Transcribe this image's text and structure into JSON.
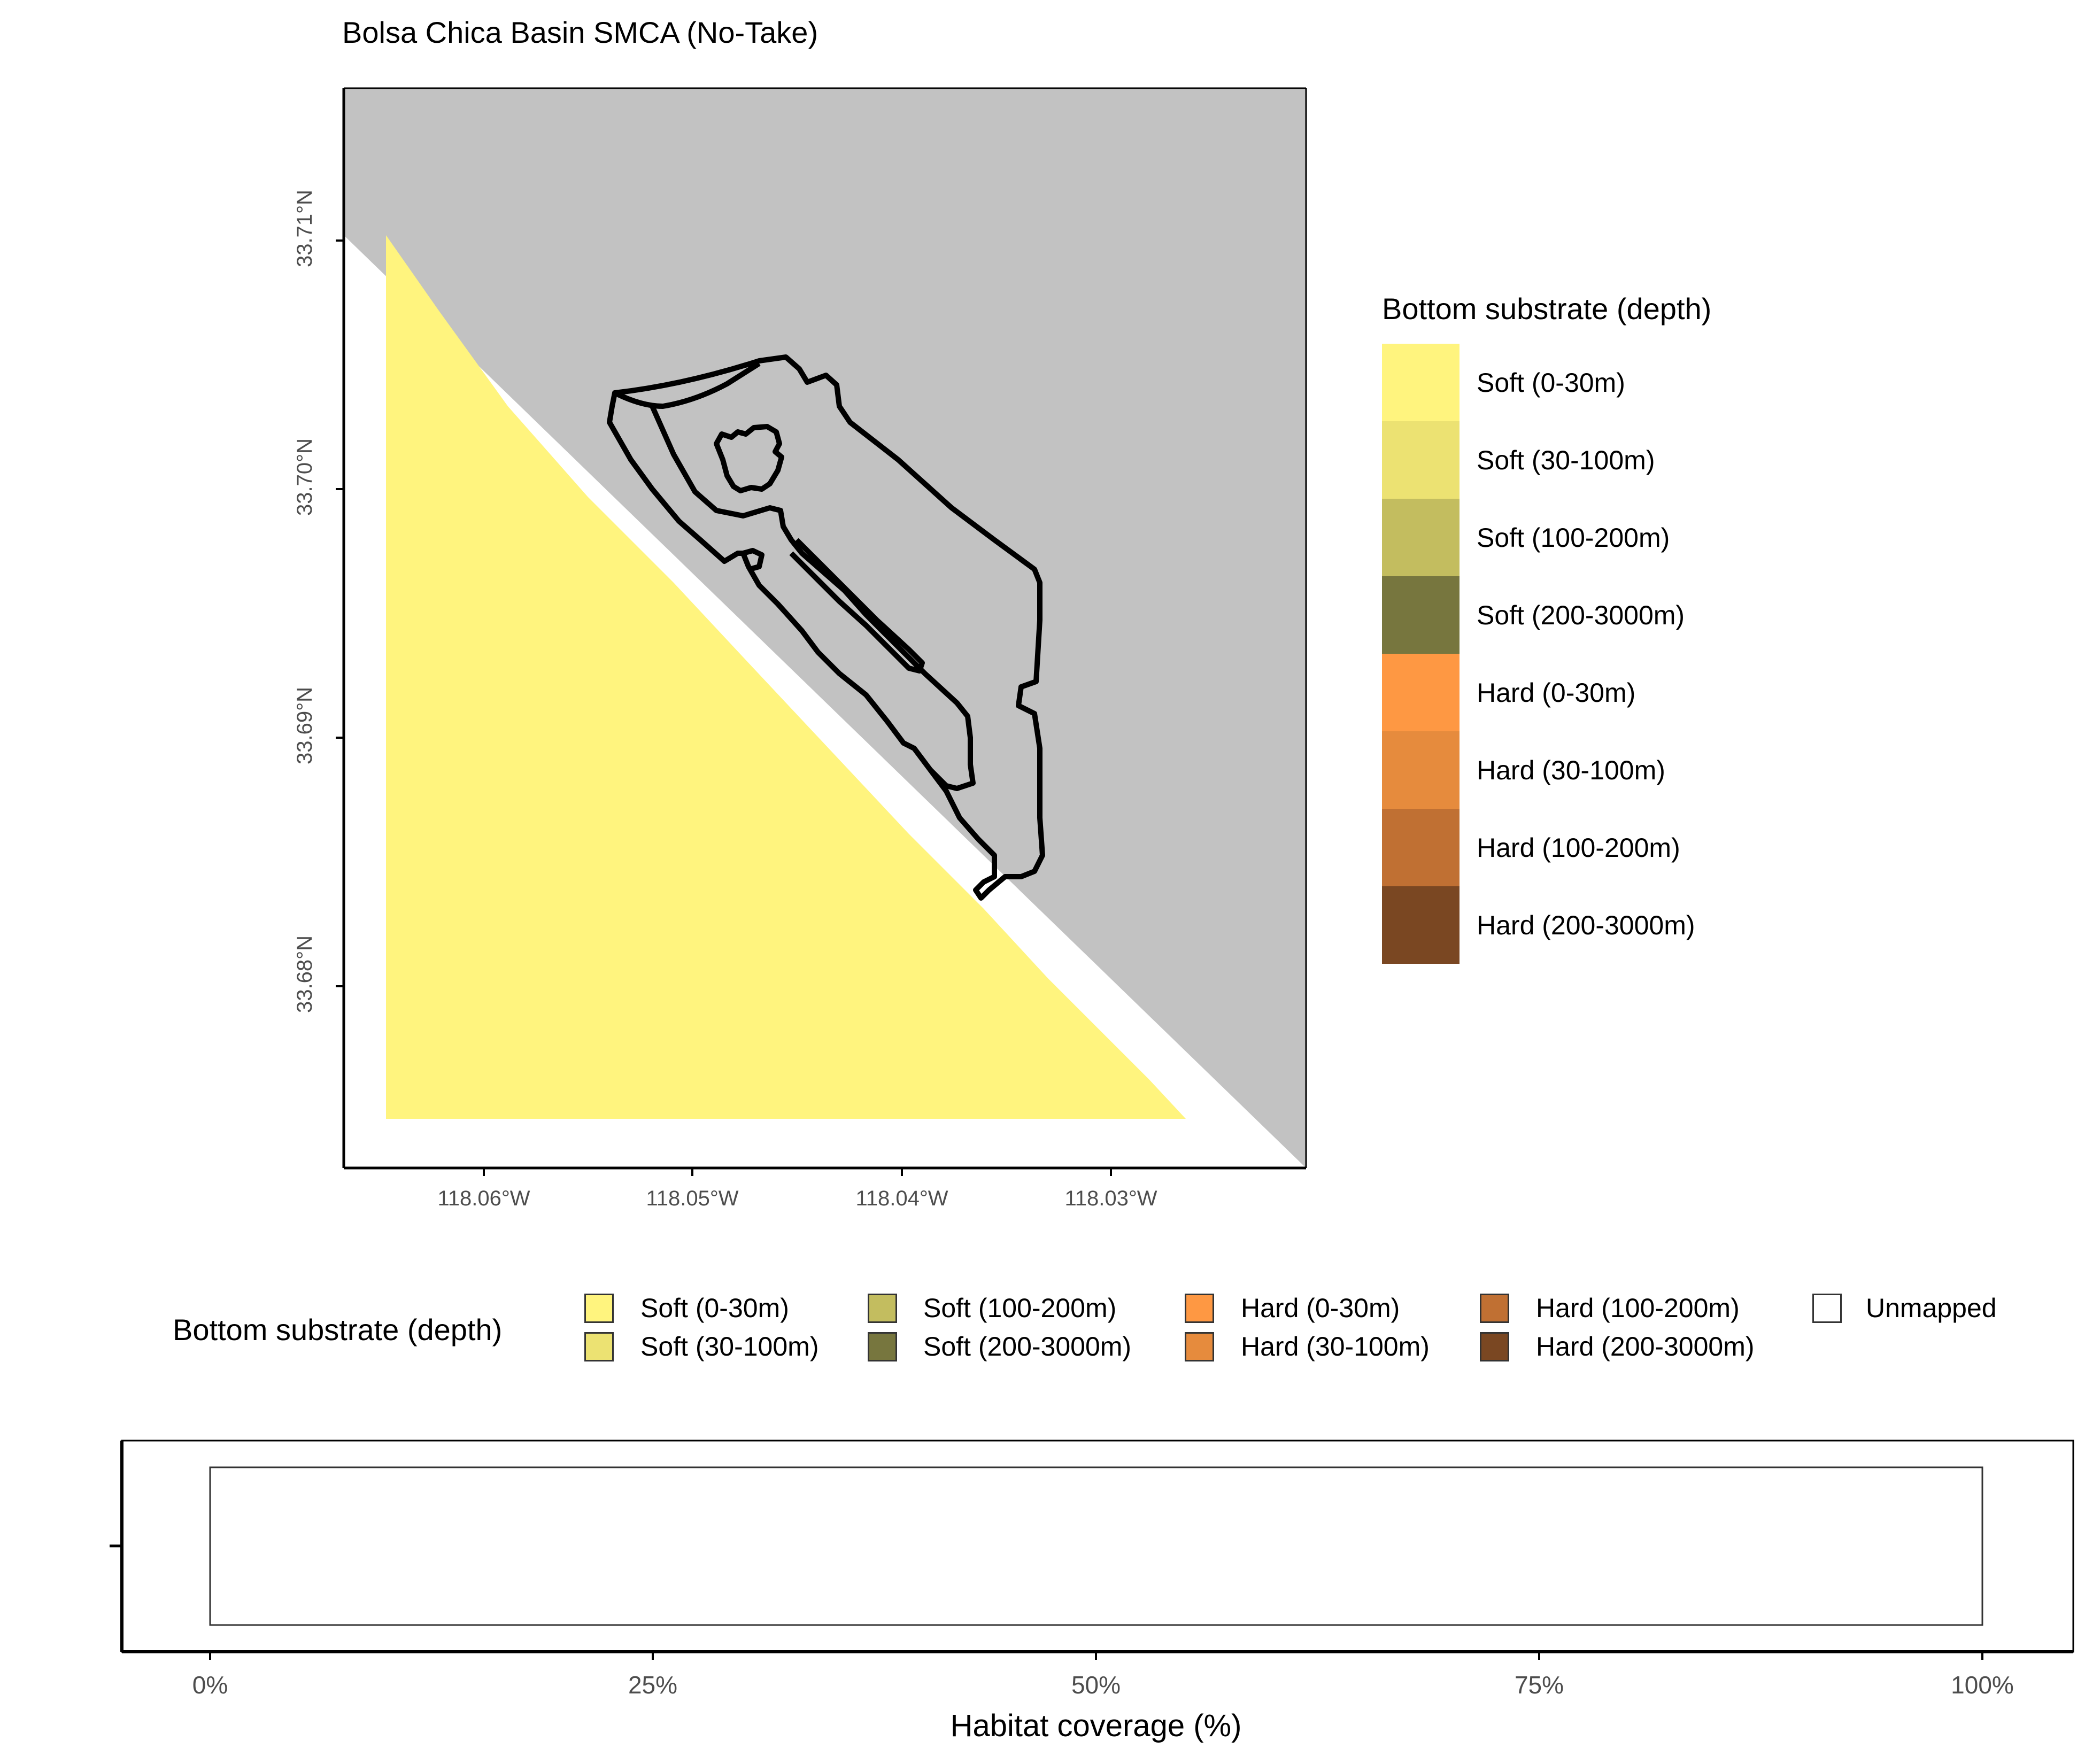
{
  "map": {
    "title": "Bolsa Chica Basin SMCA (No-Take)",
    "y_ticks": [
      "33.71°N",
      "33.70°N",
      "33.69°N",
      "33.68°N"
    ],
    "x_ticks": [
      "118.06°W",
      "118.05°W",
      "118.04°W",
      "118.03°W"
    ],
    "land_color": "#c2c2c2",
    "ocean_color": "#ffffff",
    "substrate_color": "#fff47e",
    "boundary_color": "#000000"
  },
  "legend_right": {
    "title": "Bottom substrate (depth)",
    "items": [
      {
        "label": "Soft (0-30m)",
        "color": "#fff47e"
      },
      {
        "label": "Soft (30-100m)",
        "color": "#ece272"
      },
      {
        "label": "Soft (100-200m)",
        "color": "#c3bd5f"
      },
      {
        "label": "Soft (200-3000m)",
        "color": "#77763e"
      },
      {
        "label": "Hard (0-30m)",
        "color": "#fe9843"
      },
      {
        "label": "Hard (30-100m)",
        "color": "#e68b3d"
      },
      {
        "label": "Hard (100-200m)",
        "color": "#c07033"
      },
      {
        "label": "Hard (200-3000m)",
        "color": "#7a4722"
      }
    ]
  },
  "legend_bottom": {
    "title": "Bottom substrate (depth)",
    "items": [
      {
        "label": "Soft (0-30m)",
        "color": "#fff47e"
      },
      {
        "label": "Soft (30-100m)",
        "color": "#ece272"
      },
      {
        "label": "Soft (100-200m)",
        "color": "#c3bd5f"
      },
      {
        "label": "Soft (200-3000m)",
        "color": "#77763e"
      },
      {
        "label": "Hard (0-30m)",
        "color": "#fe9843"
      },
      {
        "label": "Hard (30-100m)",
        "color": "#e68b3d"
      },
      {
        "label": "Hard (100-200m)",
        "color": "#c07033"
      },
      {
        "label": "Hard (200-3000m)",
        "color": "#7a4722"
      },
      {
        "label": "Unmapped",
        "color": "#ffffff"
      }
    ]
  },
  "coverage_bar": {
    "x_ticks": [
      "0%",
      "25%",
      "50%",
      "75%",
      "100%"
    ],
    "xlabel": "Habitat coverage (%)",
    "segments": [
      {
        "label": "Unmapped",
        "percent": 100,
        "color": "#ffffff"
      }
    ]
  }
}
